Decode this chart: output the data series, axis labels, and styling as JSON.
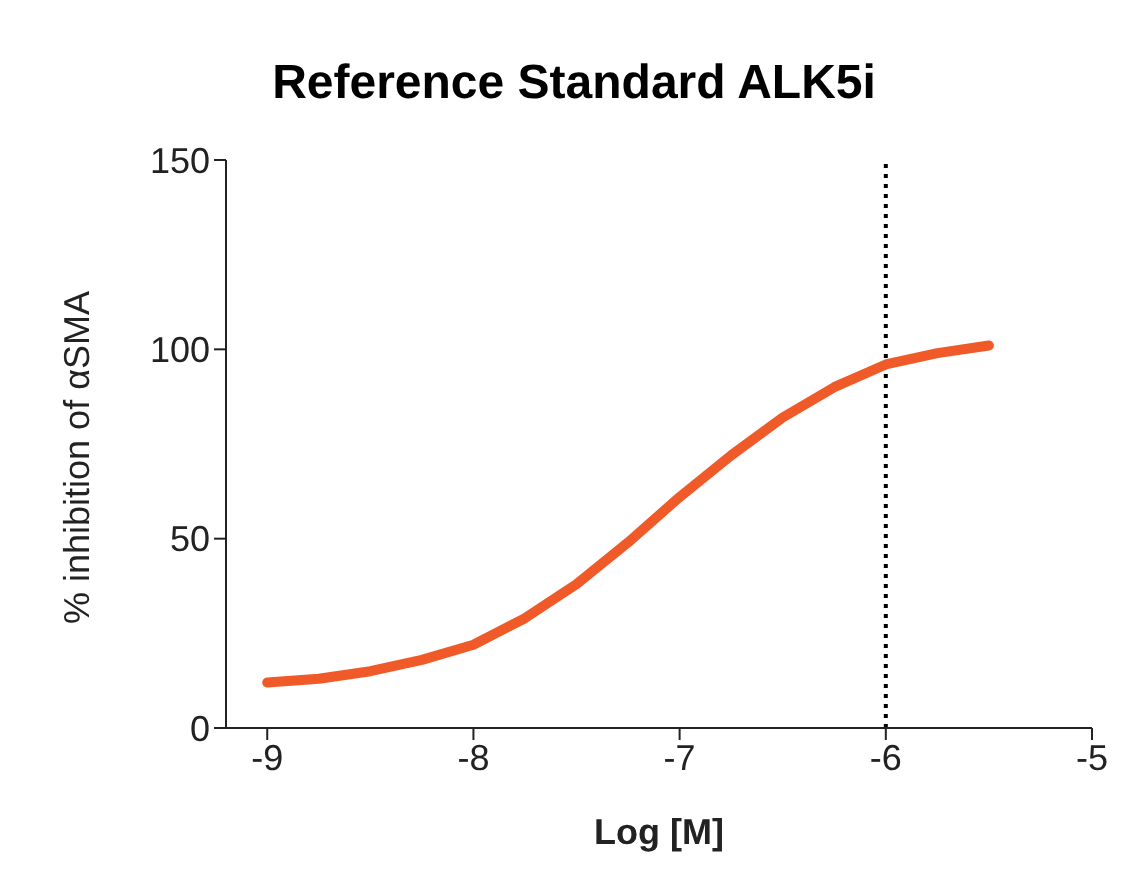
{
  "chart_data": {
    "type": "line",
    "title": "Reference Standard ALK5i",
    "xlabel": "Log [M]",
    "ylabel": "% inhibition of αSMA",
    "x": [
      -9,
      -8.75,
      -8.5,
      -8.25,
      -8,
      -7.75,
      -7.5,
      -7.25,
      -7,
      -6.75,
      -6.5,
      -6.25,
      -6,
      -5.75,
      -5.5
    ],
    "series": [
      {
        "color": "#f05a28",
        "values": [
          12,
          13,
          15,
          18,
          22,
          29,
          38,
          49,
          61,
          72,
          82,
          90,
          96,
          99,
          101
        ]
      }
    ],
    "xlim": [
      -9.2,
      -5
    ],
    "xticks": [
      -9,
      -8,
      -7,
      -6,
      -5
    ],
    "ylim": [
      0,
      150
    ],
    "yticks": [
      0,
      50,
      100,
      150
    ],
    "ref_lines": [
      {
        "axis": "x",
        "value": -6,
        "color": "#000000",
        "line_style": "dotted"
      }
    ],
    "grid": false,
    "legend": false,
    "marker": "none",
    "line_style": "solid"
  }
}
